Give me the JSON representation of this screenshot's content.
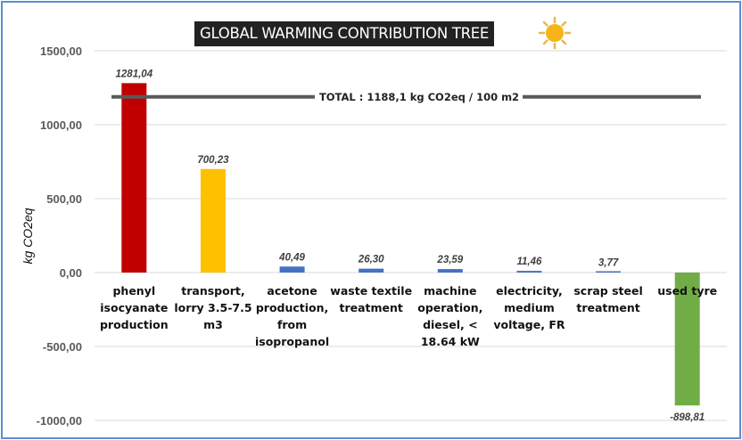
{
  "chart_data": {
    "type": "bar",
    "title": "GLOBAL WARMING CONTRIBUTION TREE",
    "ylabel": "kg CO2eq",
    "xlabel": "",
    "ylim": [
      -1000,
      1500
    ],
    "yticks": [
      1500,
      1000,
      500,
      0,
      -500,
      -1000
    ],
    "ytick_labels": [
      "1500,00",
      "1000,00",
      "500,00",
      "0,00",
      "-500,00",
      "-1000,00"
    ],
    "grid": true,
    "categories": [
      [
        "phenyl",
        "isocyanate",
        "production"
      ],
      [
        "transport,",
        "lorry 3.5-7.5",
        "m3"
      ],
      [
        "acetone",
        "production,",
        "from",
        "isopropanol"
      ],
      [
        "waste textile",
        "treatment"
      ],
      [
        "machine",
        "operation,",
        "diesel, <",
        "18.64 kW"
      ],
      [
        "electricity,",
        "medium",
        "voltage, FR"
      ],
      [
        "scrap steel",
        "treatment"
      ],
      [
        "used tyre"
      ]
    ],
    "values": [
      1281.04,
      700.23,
      40.49,
      26.3,
      23.59,
      11.46,
      3.77,
      -898.81
    ],
    "value_labels": [
      "1281,04",
      "700,23",
      "40,49",
      "26,30",
      "23,59",
      "11,46",
      "3,77",
      "-898,81"
    ],
    "colors": [
      "#C00000",
      "#FFC000",
      "#4472C4",
      "#4472C4",
      "#4472C4",
      "#4472C4",
      "#4472C4",
      "#70AD47"
    ],
    "total": {
      "value": 1188.1,
      "label": "TOTAL : 1188,1 kg CO2eq / 100 m2",
      "color": "#595959"
    }
  },
  "icons": {
    "title_icon": "sun-icon"
  }
}
